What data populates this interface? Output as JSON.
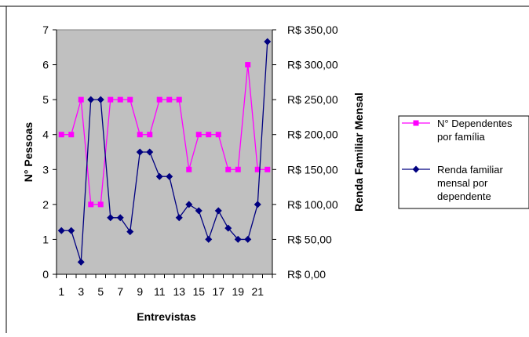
{
  "chart_data": {
    "type": "line",
    "title": "",
    "xlabel": "Entrevistas",
    "ylabel": "N° Pessoas",
    "y2label": "Renda Familiar Mensal",
    "categories": [
      1,
      2,
      3,
      4,
      5,
      6,
      7,
      8,
      9,
      10,
      11,
      12,
      13,
      14,
      15,
      16,
      17,
      18,
      19,
      20,
      21,
      22
    ],
    "x_tick_labels": [
      "1",
      "3",
      "5",
      "7",
      "9",
      "11",
      "13",
      "15",
      "17",
      "19",
      "21"
    ],
    "ylim": [
      0,
      7
    ],
    "y_ticks": [
      "0",
      "1",
      "2",
      "3",
      "4",
      "5",
      "6",
      "7"
    ],
    "y2lim": [
      0,
      350
    ],
    "y2_ticks": [
      "R$ 0,00",
      "R$ 50,00",
      "R$ 100,00",
      "R$ 150,00",
      "R$ 200,00",
      "R$ 250,00",
      "R$ 300,00",
      "R$ 350,00"
    ],
    "grid": false,
    "plot_background": "#c0c0c0",
    "legend_position": "right",
    "series": [
      {
        "name": "N° Dependentes por família",
        "legend_lines": [
          "N° Dependentes",
          "por família"
        ],
        "axis": "left",
        "color": "#ff00ff",
        "marker": "square",
        "values": [
          4,
          4,
          5,
          2,
          2,
          5,
          5,
          5,
          4,
          4,
          5,
          5,
          5,
          3,
          4,
          4,
          4,
          3,
          3,
          6,
          3,
          3
        ]
      },
      {
        "name": "Renda familiar mensal por dependente",
        "legend_lines": [
          "Renda familiar",
          "mensal por",
          "dependente"
        ],
        "axis": "right",
        "color": "#000080",
        "marker": "diamond",
        "values": [
          62.5,
          62.5,
          17.5,
          250,
          250,
          81,
          81,
          61,
          175,
          175,
          140,
          140,
          81,
          100,
          91,
          50,
          91,
          66,
          50,
          50,
          100,
          333
        ]
      }
    ]
  }
}
